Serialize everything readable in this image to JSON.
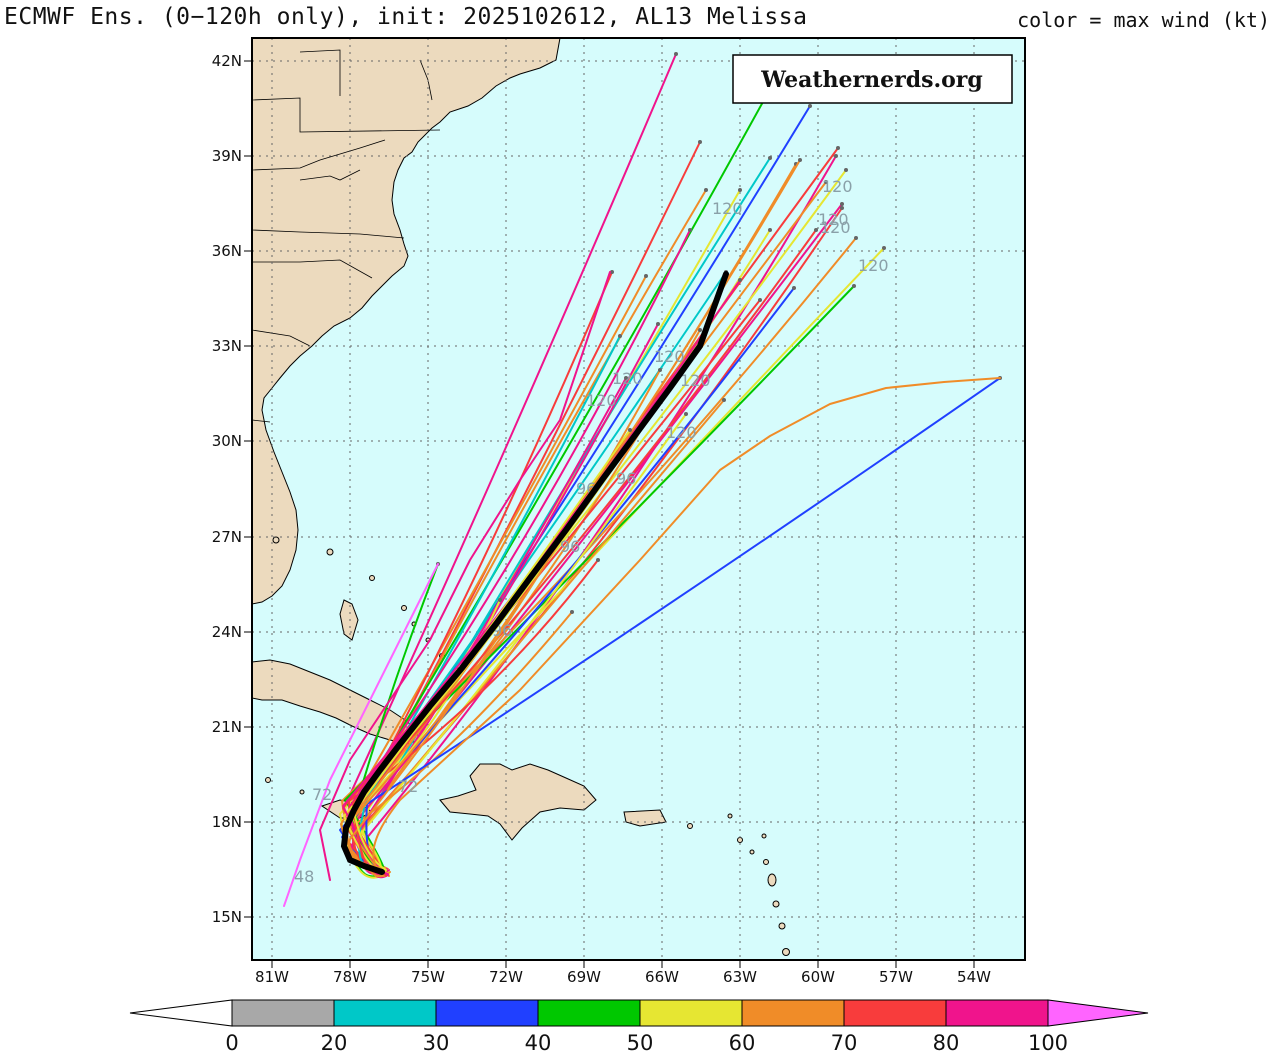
{
  "header": {
    "title": "ECMWF Ens. (0−120h only), init: 2025102612, AL13 Melissa",
    "color_label": "color = max wind (kt)"
  },
  "watermark": "Weathernerds.org",
  "axes": {
    "lat_labels": [
      "42N",
      "39N",
      "36N",
      "33N",
      "30N",
      "27N",
      "24N",
      "21N",
      "18N",
      "15N"
    ],
    "lon_labels": [
      "81W",
      "78W",
      "75W",
      "72W",
      "69W",
      "66W",
      "63W",
      "60W",
      "57W",
      "54W"
    ]
  },
  "colorbar": {
    "ticks": [
      "0",
      "20",
      "30",
      "40",
      "50",
      "60",
      "70",
      "80",
      "100"
    ],
    "colors": [
      "#a8a8a8",
      "#00c8c8",
      "#2040ff",
      "#00c800",
      "#e6e632",
      "#f08c28",
      "#f83c3c",
      "#f0148c"
    ],
    "high_arrow_color": "#ff64ff",
    "low_arrow_color": "#ffffff"
  },
  "map_colors": {
    "ocean": "#d6fcfc",
    "land": "#ecdabe",
    "border": "#000000",
    "mean_track": "#000000"
  },
  "annotations": [
    "120",
    "120",
    "120",
    "120",
    "120",
    "120",
    "120",
    "120",
    "120",
    "120",
    "96",
    "96",
    "96",
    "96",
    "72",
    "72",
    "48"
  ]
}
